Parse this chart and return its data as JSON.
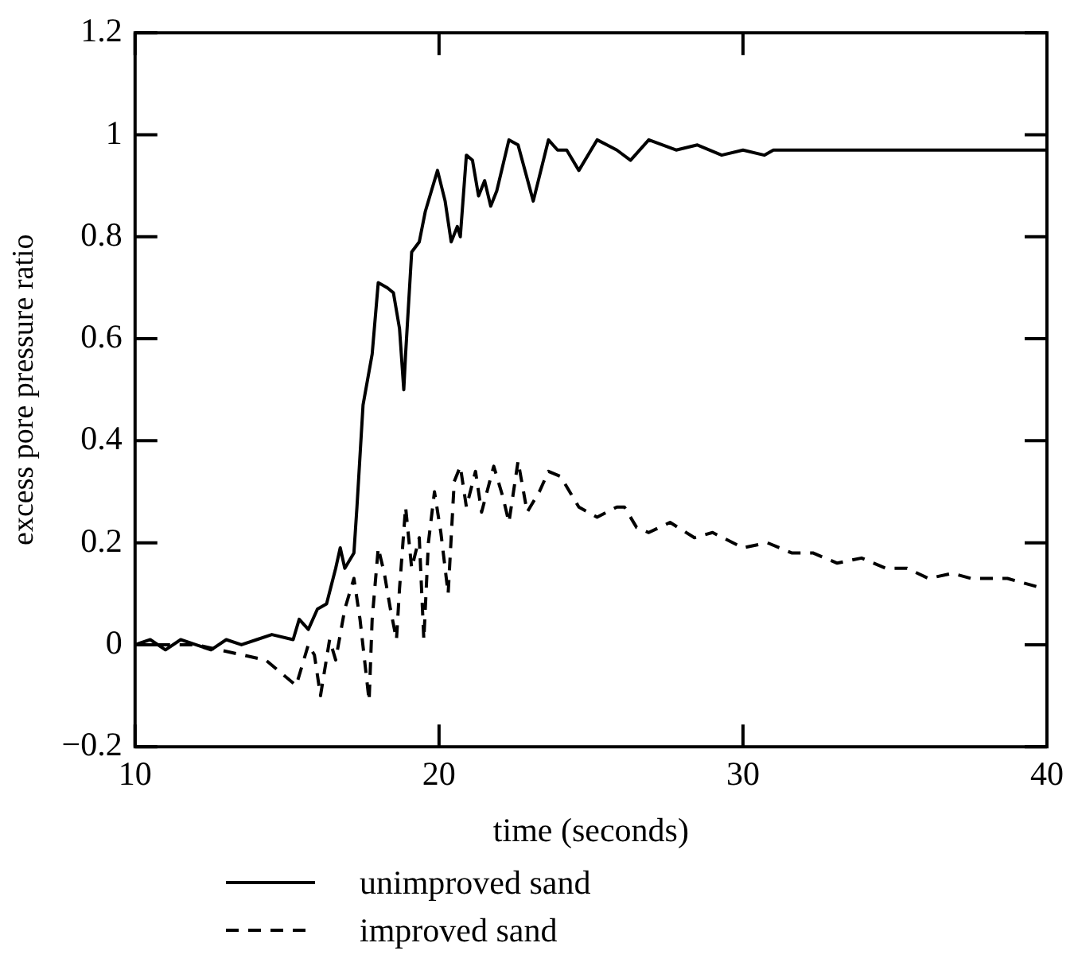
{
  "chart_data": {
    "type": "line",
    "xlabel": "time (seconds)",
    "ylabel": "excess pore pressure ratio",
    "xlim": [
      10,
      40
    ],
    "xticks": [
      10,
      20,
      30,
      40
    ],
    "ylim": [
      -0.2,
      1.2
    ],
    "yticks": [
      {
        "value": -0.2,
        "label": "−0.2"
      },
      0,
      0.2,
      0.4,
      0.6,
      0.8,
      1,
      1.2
    ],
    "grid": false,
    "legend": "bottom",
    "marker": "none",
    "series": [
      {
        "name": "unimproved sand",
        "color": "#000000",
        "line_style": "solid",
        "x": [
          10,
          10.5,
          11,
          11.5,
          12,
          12.5,
          13,
          13.5,
          14,
          14.5,
          15.2,
          15.4,
          15.7,
          16.0,
          16.3,
          16.6,
          16.75,
          16.9,
          17.2,
          17.3,
          17.5,
          17.8,
          18.0,
          18.3,
          18.5,
          18.7,
          18.84,
          18.9,
          19.1,
          19.35,
          19.55,
          19.75,
          19.95,
          20.2,
          20.4,
          20.6,
          20.7,
          20.9,
          21.1,
          21.3,
          21.5,
          21.7,
          21.9,
          22.3,
          22.6,
          23.1,
          23.6,
          23.9,
          24.2,
          24.6,
          25.2,
          25.85,
          26.3,
          26.9,
          27.8,
          28.5,
          29.3,
          30.0,
          30.7,
          31.0,
          32,
          33,
          34,
          35,
          36,
          37,
          38,
          39,
          40
        ],
        "values": [
          0,
          0.01,
          -0.01,
          0.01,
          0,
          -0.01,
          0.01,
          0,
          0.01,
          0.02,
          0.01,
          0.05,
          0.03,
          0.07,
          0.08,
          0.15,
          0.19,
          0.15,
          0.18,
          0.27,
          0.47,
          0.57,
          0.71,
          0.7,
          0.69,
          0.62,
          0.5,
          0.57,
          0.77,
          0.79,
          0.85,
          0.89,
          0.93,
          0.87,
          0.79,
          0.82,
          0.8,
          0.96,
          0.95,
          0.88,
          0.91,
          0.86,
          0.89,
          0.99,
          0.98,
          0.87,
          0.99,
          0.97,
          0.97,
          0.93,
          0.99,
          0.97,
          0.95,
          0.99,
          0.97,
          0.98,
          0.96,
          0.97,
          0.96,
          0.97,
          0.97,
          0.97,
          0.97,
          0.97,
          0.97,
          0.97,
          0.97,
          0.97,
          0.97
        ]
      },
      {
        "name": "improved sand",
        "color": "#000000",
        "line_style": "dashed",
        "x": [
          10,
          12,
          14.3,
          15.3,
          15.7,
          15.9,
          16.1,
          16.4,
          16.6,
          16.9,
          17.2,
          17.4,
          17.7,
          17.8,
          18.0,
          18.2,
          18.4,
          18.6,
          18.7,
          18.9,
          19.1,
          19.35,
          19.5,
          19.65,
          19.85,
          20.06,
          20.3,
          20.5,
          20.7,
          20.9,
          21.2,
          21.4,
          21.8,
          22.1,
          22.3,
          22.6,
          22.9,
          23.3,
          23.6,
          24.0,
          24.6,
          25.2,
          25.85,
          26.1,
          26.5,
          26.9,
          27.6,
          28.4,
          29.0,
          30.0,
          30.8,
          31.6,
          32.3,
          33.1,
          33.9,
          34.7,
          35.4,
          36.1,
          36.9,
          37.5,
          38.7,
          39.9
        ],
        "values": [
          0,
          0,
          -0.03,
          -0.08,
          0,
          -0.02,
          -0.1,
          0.01,
          -0.03,
          0.07,
          0.13,
          0.05,
          -0.11,
          0.05,
          0.19,
          0.14,
          0.07,
          0.01,
          0.11,
          0.27,
          0.15,
          0.21,
          0.01,
          0.2,
          0.3,
          0.22,
          0.1,
          0.32,
          0.35,
          0.27,
          0.34,
          0.26,
          0.35,
          0.29,
          0.24,
          0.36,
          0.26,
          0.3,
          0.34,
          0.33,
          0.27,
          0.25,
          0.27,
          0.27,
          0.23,
          0.22,
          0.24,
          0.21,
          0.22,
          0.19,
          0.2,
          0.18,
          0.18,
          0.16,
          0.17,
          0.15,
          0.15,
          0.13,
          0.14,
          0.13,
          0.13,
          0.11
        ]
      }
    ]
  }
}
